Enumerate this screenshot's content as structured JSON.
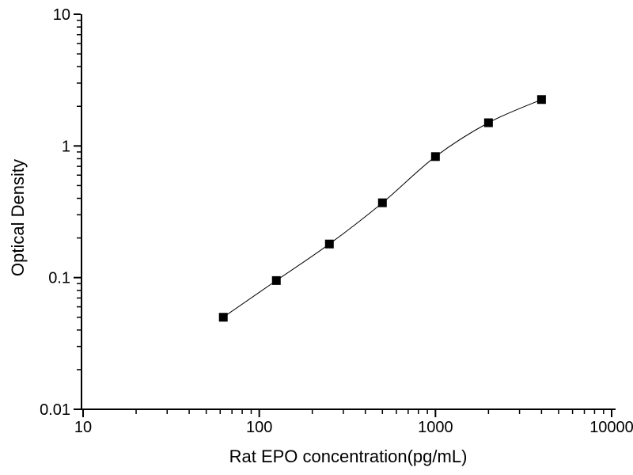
{
  "figure": {
    "background": "#ffffff",
    "foreground": "#000000"
  },
  "chart_data": {
    "type": "scatter",
    "title": "",
    "xlabel": "Rat EPO concentration(pg/mL)",
    "ylabel": "Optical Density",
    "x_scale": "log",
    "y_scale": "log",
    "xlim": [
      10,
      10000
    ],
    "ylim": [
      0.01,
      10
    ],
    "x_major_ticks": [
      10,
      100,
      1000,
      10000
    ],
    "x_tick_labels": [
      "10",
      "100",
      "1000",
      "10000"
    ],
    "y_major_ticks": [
      0.01,
      0.1,
      1,
      10
    ],
    "y_tick_labels": [
      "0.01",
      "0.1",
      "1",
      "10"
    ],
    "minor_ticks": true,
    "grid": false,
    "legend": null,
    "series": [
      {
        "x": [
          62.5,
          125,
          250,
          500,
          1000,
          2000,
          4000
        ],
        "y": [
          0.05,
          0.095,
          0.18,
          0.37,
          0.83,
          1.5,
          2.25
        ],
        "marker": "filled-square",
        "marker_color": "#000000",
        "line": "smooth",
        "line_color": "#000000"
      }
    ]
  }
}
